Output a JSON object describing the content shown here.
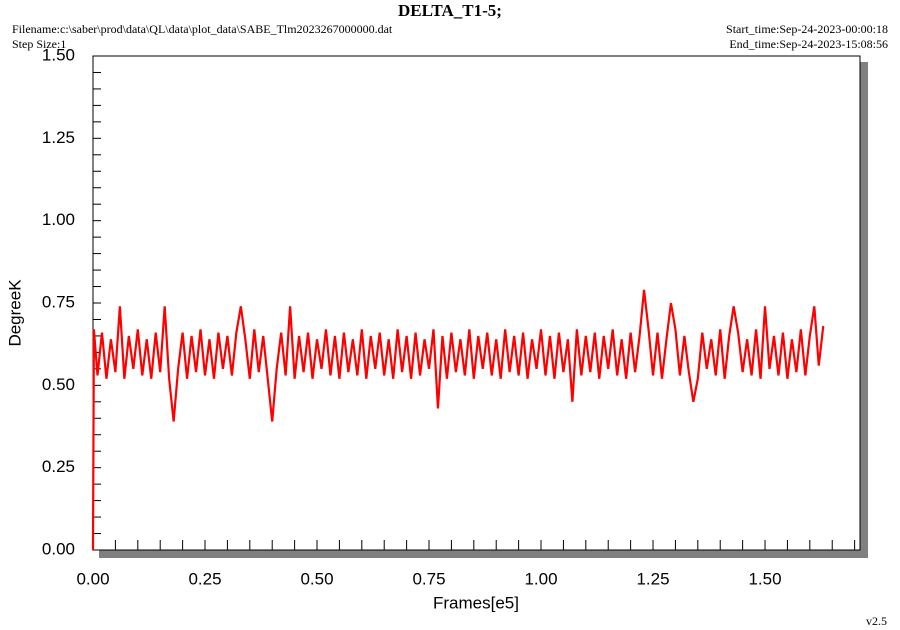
{
  "chart_data": {
    "type": "line",
    "title": "DELTA_T1-5;",
    "filename": "Filename:c:\\saber\\prod\\data\\QL\\data\\plot_data\\SABE_Tlm2023267000000.dat",
    "step_size": "Step Size:1",
    "start_time": "Start_time:Sep-24-2023-00:00:18",
    "end_time": "End_time:Sep-24-2023-15:08:56",
    "version": "v2.5",
    "xlabel": "Frames[e5]",
    "ylabel": "DegreeK",
    "color": "#ff0000",
    "xlim": [
      0,
      1.712
    ],
    "ylim": [
      0,
      1.5
    ],
    "xticks": [
      {
        "value": 0,
        "label": "0.00"
      },
      {
        "value": 0.25,
        "label": "0.25"
      },
      {
        "value": 0.5,
        "label": "0.50"
      },
      {
        "value": 0.75,
        "label": "0.75"
      },
      {
        "value": 1,
        "label": "1.00"
      },
      {
        "value": 1.25,
        "label": "1.25"
      },
      {
        "value": 1.5,
        "label": "1.50"
      }
    ],
    "yticks": [
      {
        "value": 0,
        "label": "0.00"
      },
      {
        "value": 0.25,
        "label": "0.25"
      },
      {
        "value": 0.5,
        "label": "0.50"
      },
      {
        "value": 0.75,
        "label": "0.75"
      },
      {
        "value": 1,
        "label": "1.00"
      },
      {
        "value": 1.25,
        "label": "1.25"
      },
      {
        "value": 1.5,
        "label": "1.50"
      }
    ],
    "x_minor_ticks": [
      0.05,
      0.1,
      0.15,
      0.2,
      0.3,
      0.35,
      0.4,
      0.45,
      0.55,
      0.6,
      0.65,
      0.7,
      0.8,
      0.85,
      0.9,
      0.95,
      1.05,
      1.1,
      1.15,
      1.2,
      1.3,
      1.35,
      1.4,
      1.45,
      1.55,
      1.6,
      1.65,
      1.7
    ],
    "y_minor_ticks": [
      0.05,
      0.1,
      0.15,
      0.2,
      0.3,
      0.35,
      0.4,
      0.45,
      0.55,
      0.6,
      0.65,
      0.7,
      0.8,
      0.85,
      0.9,
      0.95,
      1.05,
      1.1,
      1.15,
      1.2,
      1.3,
      1.35,
      1.4,
      1.45
    ],
    "x": [
      0,
      0.002,
      0.01,
      0.02,
      0.03,
      0.04,
      0.05,
      0.06,
      0.07,
      0.08,
      0.09,
      0.1,
      0.11,
      0.12,
      0.13,
      0.14,
      0.15,
      0.16,
      0.17,
      0.18,
      0.19,
      0.2,
      0.21,
      0.22,
      0.23,
      0.24,
      0.25,
      0.26,
      0.27,
      0.28,
      0.29,
      0.3,
      0.31,
      0.32,
      0.33,
      0.34,
      0.35,
      0.36,
      0.37,
      0.38,
      0.39,
      0.4,
      0.41,
      0.42,
      0.43,
      0.44,
      0.45,
      0.46,
      0.47,
      0.48,
      0.49,
      0.5,
      0.51,
      0.52,
      0.53,
      0.54,
      0.55,
      0.56,
      0.57,
      0.58,
      0.59,
      0.6,
      0.61,
      0.62,
      0.63,
      0.64,
      0.65,
      0.66,
      0.67,
      0.68,
      0.69,
      0.7,
      0.71,
      0.72,
      0.73,
      0.74,
      0.75,
      0.76,
      0.77,
      0.78,
      0.79,
      0.8,
      0.81,
      0.82,
      0.83,
      0.84,
      0.85,
      0.86,
      0.87,
      0.88,
      0.89,
      0.9,
      0.91,
      0.92,
      0.93,
      0.94,
      0.95,
      0.96,
      0.97,
      0.98,
      0.99,
      1,
      1.01,
      1.02,
      1.03,
      1.04,
      1.05,
      1.06,
      1.07,
      1.08,
      1.09,
      1.1,
      1.11,
      1.12,
      1.13,
      1.14,
      1.15,
      1.16,
      1.17,
      1.18,
      1.19,
      1.2,
      1.21,
      1.22,
      1.23,
      1.24,
      1.25,
      1.26,
      1.27,
      1.28,
      1.29,
      1.3,
      1.31,
      1.32,
      1.33,
      1.34,
      1.35,
      1.36,
      1.37,
      1.38,
      1.39,
      1.4,
      1.41,
      1.42,
      1.43,
      1.44,
      1.45,
      1.46,
      1.47,
      1.48,
      1.49,
      1.5,
      1.51,
      1.52,
      1.53,
      1.54,
      1.55,
      1.56,
      1.57,
      1.58,
      1.59,
      1.6,
      1.61,
      1.62,
      1.63
    ],
    "values": [
      0,
      0.67,
      0.53,
      0.66,
      0.52,
      0.64,
      0.54,
      0.74,
      0.52,
      0.65,
      0.55,
      0.67,
      0.53,
      0.64,
      0.52,
      0.66,
      0.54,
      0.74,
      0.52,
      0.39,
      0.55,
      0.66,
      0.52,
      0.65,
      0.54,
      0.67,
      0.53,
      0.64,
      0.52,
      0.66,
      0.55,
      0.65,
      0.53,
      0.66,
      0.74,
      0.64,
      0.52,
      0.67,
      0.54,
      0.65,
      0.52,
      0.39,
      0.55,
      0.66,
      0.53,
      0.74,
      0.52,
      0.65,
      0.54,
      0.66,
      0.52,
      0.64,
      0.55,
      0.67,
      0.53,
      0.65,
      0.52,
      0.66,
      0.54,
      0.64,
      0.53,
      0.67,
      0.52,
      0.65,
      0.55,
      0.66,
      0.53,
      0.64,
      0.52,
      0.67,
      0.54,
      0.65,
      0.52,
      0.66,
      0.53,
      0.64,
      0.55,
      0.67,
      0.43,
      0.65,
      0.52,
      0.66,
      0.54,
      0.64,
      0.53,
      0.67,
      0.52,
      0.65,
      0.55,
      0.66,
      0.53,
      0.64,
      0.52,
      0.67,
      0.54,
      0.65,
      0.53,
      0.66,
      0.52,
      0.64,
      0.55,
      0.67,
      0.53,
      0.65,
      0.52,
      0.66,
      0.54,
      0.64,
      0.45,
      0.67,
      0.53,
      0.65,
      0.54,
      0.66,
      0.52,
      0.65,
      0.55,
      0.67,
      0.53,
      0.64,
      0.52,
      0.66,
      0.54,
      0.65,
      0.79,
      0.67,
      0.53,
      0.66,
      0.52,
      0.64,
      0.75,
      0.67,
      0.53,
      0.65,
      0.54,
      0.45,
      0.52,
      0.66,
      0.55,
      0.64,
      0.53,
      0.67,
      0.52,
      0.65,
      0.74,
      0.66,
      0.54,
      0.64,
      0.53,
      0.67,
      0.52,
      0.74,
      0.55,
      0.65,
      0.53,
      0.66,
      0.52,
      0.64,
      0.54,
      0.67,
      0.53,
      0.65,
      0.74,
      0.56,
      0.68
    ]
  }
}
